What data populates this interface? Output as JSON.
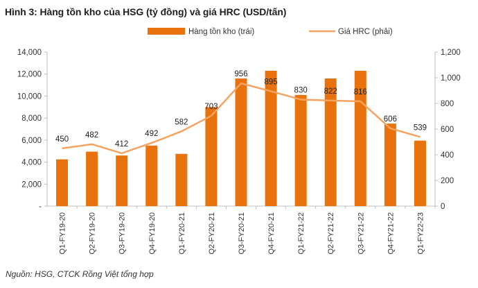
{
  "figure": {
    "title": "Hình 3: Hàng tồn kho của HSG (tỷ đồng) và giá HRC (USD/tấn)",
    "source": "Nguồn: HSG, CTCK Rồng Việt tổng hợp"
  },
  "colors": {
    "bar": "#e8730c",
    "line": "#f4a460",
    "axis": "#bfbfbf"
  },
  "chart_data": {
    "type": "bar",
    "categories": [
      "Q1-FY19-20",
      "Q2-FY19-20",
      "Q3-FY19-20",
      "Q4-FY19-20",
      "Q1-FY20-21",
      "Q2-FY20-21",
      "Q3-FY20-21",
      "Q4-FY20-21",
      "Q1-FY21-22",
      "Q2-FY21-22",
      "Q3-FY21-22",
      "Q4-FY21-22",
      "Q1-FY22-23"
    ],
    "series": [
      {
        "name": "Hàng tồn kho (trái)",
        "type": "bar",
        "axis": "left",
        "values": [
          4250,
          4950,
          4600,
          5500,
          4750,
          9000,
          11600,
          12300,
          10100,
          11600,
          12300,
          7500,
          5950
        ]
      },
      {
        "name": "Giá HRC (phải)",
        "type": "line",
        "axis": "right",
        "values": [
          450,
          482,
          412,
          492,
          582,
          703,
          956,
          895,
          830,
          822,
          816,
          606,
          539
        ]
      }
    ],
    "y_left": {
      "min": 0,
      "max": 14000,
      "ticks": [
        "-",
        "2,000",
        "4,000",
        "6,000",
        "8,000",
        "10,000",
        "12,000",
        "14,000"
      ]
    },
    "y_right": {
      "min": 0,
      "max": 1200,
      "ticks": [
        "0",
        "200",
        "400",
        "600",
        "800",
        "1,000",
        "1,200"
      ]
    },
    "data_labels": [
      "450",
      "482",
      "412",
      "492",
      "582",
      "703",
      "956",
      "895",
      "830",
      "822",
      "816",
      "606",
      "539"
    ],
    "legend_position": "top",
    "grid": false
  }
}
